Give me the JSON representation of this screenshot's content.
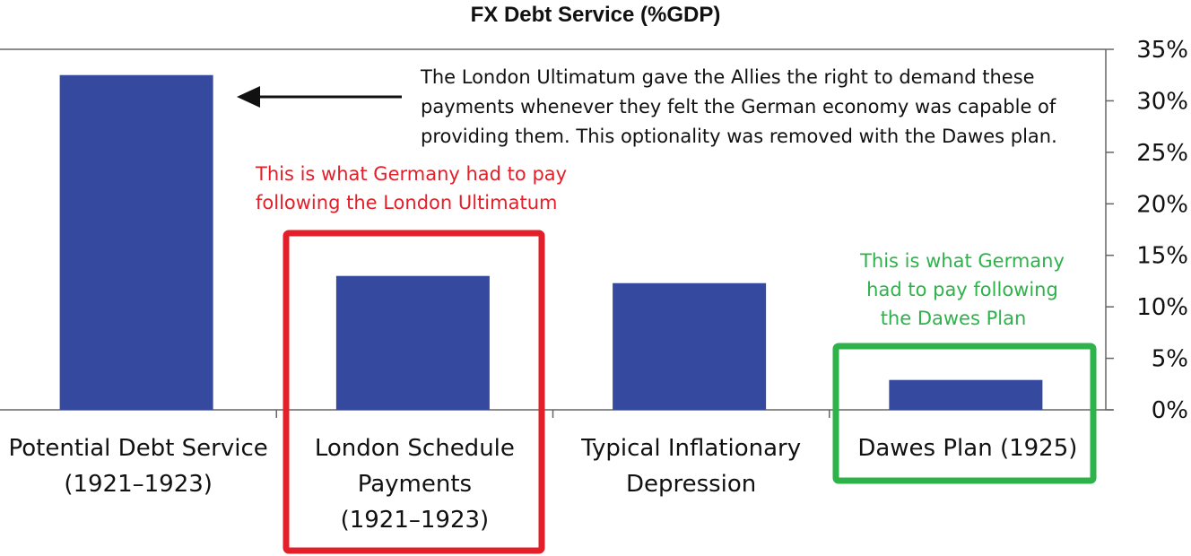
{
  "chart_data": {
    "type": "bar",
    "title": "FX Debt Service (%GDP)",
    "categories": [
      [
        "Potential Debt Service",
        "(1921–1923)"
      ],
      [
        "London Schedule",
        "Payments",
        "(1921–1923)"
      ],
      [
        "Typical Inflationary",
        "Depression"
      ],
      [
        "Dawes Plan (1925)"
      ]
    ],
    "values": [
      32.5,
      13.0,
      12.3,
      2.9
    ],
    "ylim": [
      0,
      35
    ],
    "yticks": [
      "0%",
      "5%",
      "10%",
      "15%",
      "20%",
      "25%",
      "30%",
      "35%"
    ],
    "ytick_values": [
      0,
      5,
      10,
      15,
      20,
      25,
      30,
      35
    ],
    "y_axis_side": "right",
    "grid": false,
    "bar_color": "#354a9f",
    "annotations": [
      {
        "text": [
          "The London Ultimatum gave the Allies the right to demand these",
          "payments whenever they felt the German economy was capable of",
          "providing them. This optionality was removed with the Dawes plan."
        ],
        "color": "#111111",
        "points_to_category": 0
      },
      {
        "text": [
          "This is what Germany had to pay",
          "following the London Ultimatum"
        ],
        "color": "#e3202a",
        "highlight_category": 1
      },
      {
        "text": [
          "This is what Germany",
          "had to pay following",
          "the Dawes Plan"
        ],
        "color": "#2eb24a",
        "highlight_category": 3
      }
    ]
  }
}
